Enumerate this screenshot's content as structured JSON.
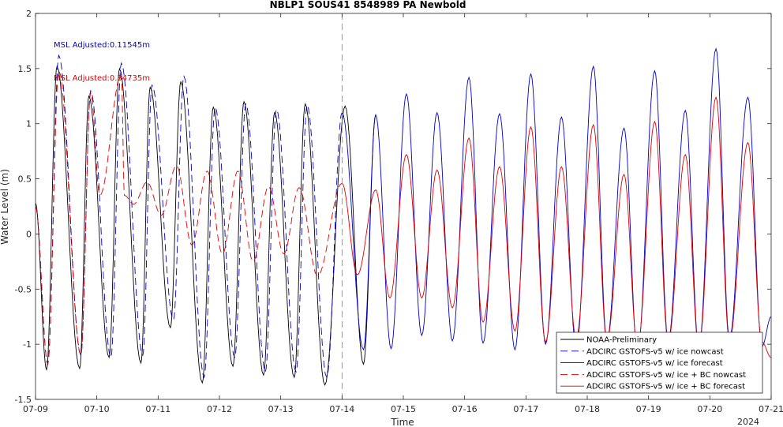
{
  "chart_data": {
    "type": "line",
    "title": "NBLP1 SOUS41 8548989 PA Newbold",
    "xlabel": "Time",
    "ylabel": "Water Level (m)",
    "x_year_label": "2024",
    "x_ticks": [
      "07-09",
      "07-10",
      "07-11",
      "07-12",
      "07-13",
      "07-14",
      "07-15",
      "07-16",
      "07-17",
      "07-18",
      "07-19",
      "07-20",
      "07-21"
    ],
    "xlim_days": [
      0,
      12
    ],
    "ylim": [
      -1.5,
      2
    ],
    "y_ticks": [
      "-1.5",
      "-1",
      "-0.5",
      "0",
      "0.5",
      "1",
      "1.5",
      "2"
    ],
    "y_tick_values": [
      -1.5,
      -1,
      -0.5,
      0,
      0.5,
      1,
      1.5,
      2
    ],
    "grid": false,
    "legend_position": "bottom-right",
    "nowcast_forecast_split_day": 5,
    "annotations": [
      {
        "text": "MSL Adjusted:0.11545m",
        "color": "#0000cc"
      },
      {
        "text": "MSL Adjusted:0.34735m",
        "color": "#e00000"
      }
    ],
    "series": [
      {
        "name": "NOAA-Preliminary",
        "color": "#000000",
        "dash": "solid",
        "peaks": [
          [
            0.35,
            1.52
          ],
          [
            0.87,
            1.25
          ],
          [
            1.37,
            1.5
          ],
          [
            1.87,
            1.33
          ],
          [
            2.37,
            1.38
          ],
          [
            2.9,
            1.15
          ],
          [
            3.4,
            1.2
          ],
          [
            3.9,
            1.1
          ],
          [
            4.4,
            1.18
          ],
          [
            5.05,
            1.16
          ],
          [
            5.55,
            1.08
          ]
        ],
        "troughs": [
          [
            0.0,
            0.28
          ],
          [
            0.18,
            -1.23
          ],
          [
            0.72,
            -1.22
          ],
          [
            1.2,
            -1.12
          ],
          [
            1.72,
            -1.17
          ],
          [
            2.2,
            -0.85
          ],
          [
            2.72,
            -1.35
          ],
          [
            3.22,
            -1.2
          ],
          [
            3.72,
            -1.28
          ],
          [
            4.22,
            -1.3
          ],
          [
            4.72,
            -1.37
          ],
          [
            5.35,
            -1.18
          ]
        ]
      },
      {
        "name": "ADCIRC GSTOFS-v5 w/ ice nowcast",
        "color": "#0000cc",
        "dash": "dashed",
        "peaks": [
          [
            0.38,
            1.62
          ],
          [
            0.9,
            1.3
          ],
          [
            1.4,
            1.55
          ],
          [
            1.9,
            1.35
          ],
          [
            2.42,
            1.43
          ],
          [
            2.93,
            1.15
          ],
          [
            3.43,
            1.18
          ],
          [
            3.93,
            1.13
          ],
          [
            4.43,
            1.17
          ],
          [
            5.0,
            1.1
          ]
        ],
        "troughs": [
          [
            0.0,
            0.25
          ],
          [
            0.2,
            -1.18
          ],
          [
            0.74,
            -1.1
          ],
          [
            1.23,
            -1.12
          ],
          [
            1.75,
            -1.1
          ],
          [
            2.25,
            -0.78
          ],
          [
            2.75,
            -1.3
          ],
          [
            3.25,
            -1.12
          ],
          [
            3.75,
            -1.25
          ],
          [
            4.25,
            -1.25
          ],
          [
            4.75,
            -1.3
          ]
        ]
      },
      {
        "name": "ADCIRC GSTOFS-v5 w/ ice forecast",
        "color": "#0000cc",
        "dash": "solid",
        "peaks": [
          [
            5.0,
            1.1
          ],
          [
            5.55,
            1.08
          ],
          [
            6.05,
            1.27
          ],
          [
            6.55,
            1.1
          ],
          [
            7.07,
            1.42
          ],
          [
            7.57,
            1.09
          ],
          [
            8.08,
            1.45
          ],
          [
            8.58,
            1.06
          ],
          [
            9.1,
            1.52
          ],
          [
            9.6,
            0.96
          ],
          [
            10.1,
            1.48
          ],
          [
            10.6,
            1.12
          ],
          [
            11.1,
            1.68
          ],
          [
            11.62,
            1.24
          ]
        ],
        "troughs": [
          [
            5.35,
            -1.05
          ],
          [
            5.8,
            -1.04
          ],
          [
            6.3,
            -0.92
          ],
          [
            6.8,
            -0.97
          ],
          [
            7.3,
            -0.99
          ],
          [
            7.82,
            -1.05
          ],
          [
            8.32,
            -1.0
          ],
          [
            8.82,
            -1.05
          ],
          [
            9.32,
            -0.97
          ],
          [
            9.82,
            -1.08
          ],
          [
            10.32,
            -0.97
          ],
          [
            10.82,
            -1.03
          ],
          [
            11.32,
            -0.95
          ],
          [
            11.85,
            -1.02
          ],
          [
            12.0,
            -0.75
          ]
        ]
      },
      {
        "name": "ADCIRC GSTOFS-v5 w/ ice + BC nowcast",
        "color": "#e00000",
        "dash": "dashed",
        "peaks": [
          [
            0.38,
            1.48
          ],
          [
            0.9,
            1.28
          ],
          [
            1.4,
            1.45
          ],
          [
            1.82,
            0.47
          ],
          [
            2.3,
            0.62
          ],
          [
            2.8,
            0.57
          ],
          [
            3.3,
            0.57
          ],
          [
            3.8,
            0.43
          ],
          [
            4.3,
            0.42
          ],
          [
            5.0,
            0.46
          ]
        ],
        "troughs": [
          [
            0.0,
            0.25
          ],
          [
            0.2,
            -1.18
          ],
          [
            0.74,
            -1.1
          ],
          [
            1.05,
            0.35
          ],
          [
            1.45,
            0.35
          ],
          [
            1.6,
            0.27
          ],
          [
            2.05,
            0.17
          ],
          [
            2.55,
            -0.1
          ],
          [
            3.05,
            -0.18
          ],
          [
            3.55,
            -0.25
          ],
          [
            4.05,
            -0.18
          ],
          [
            4.6,
            -0.38
          ]
        ]
      },
      {
        "name": "ADCIRC GSTOFS-v5 w/ ice + BC forecast",
        "color": "#e00000",
        "dash": "solid",
        "peaks": [
          [
            5.0,
            0.46
          ],
          [
            5.55,
            0.4
          ],
          [
            6.05,
            0.72
          ],
          [
            6.55,
            0.58
          ],
          [
            7.07,
            0.87
          ],
          [
            7.57,
            0.61
          ],
          [
            8.08,
            0.97
          ],
          [
            8.58,
            0.61
          ],
          [
            9.1,
            0.99
          ],
          [
            9.6,
            0.54
          ],
          [
            10.1,
            1.02
          ],
          [
            10.6,
            0.72
          ],
          [
            11.1,
            1.24
          ],
          [
            11.62,
            0.83
          ]
        ],
        "troughs": [
          [
            5.25,
            -0.37
          ],
          [
            5.78,
            -0.58
          ],
          [
            6.3,
            -0.58
          ],
          [
            6.8,
            -0.67
          ],
          [
            7.3,
            -0.8
          ],
          [
            7.82,
            -0.88
          ],
          [
            8.32,
            -0.98
          ],
          [
            8.82,
            -0.95
          ],
          [
            9.32,
            -0.97
          ],
          [
            9.82,
            -1.03
          ],
          [
            10.32,
            -0.98
          ],
          [
            10.82,
            -1.03
          ],
          [
            11.32,
            -0.97
          ],
          [
            11.85,
            -0.98
          ],
          [
            12.0,
            -1.12
          ]
        ]
      }
    ]
  }
}
